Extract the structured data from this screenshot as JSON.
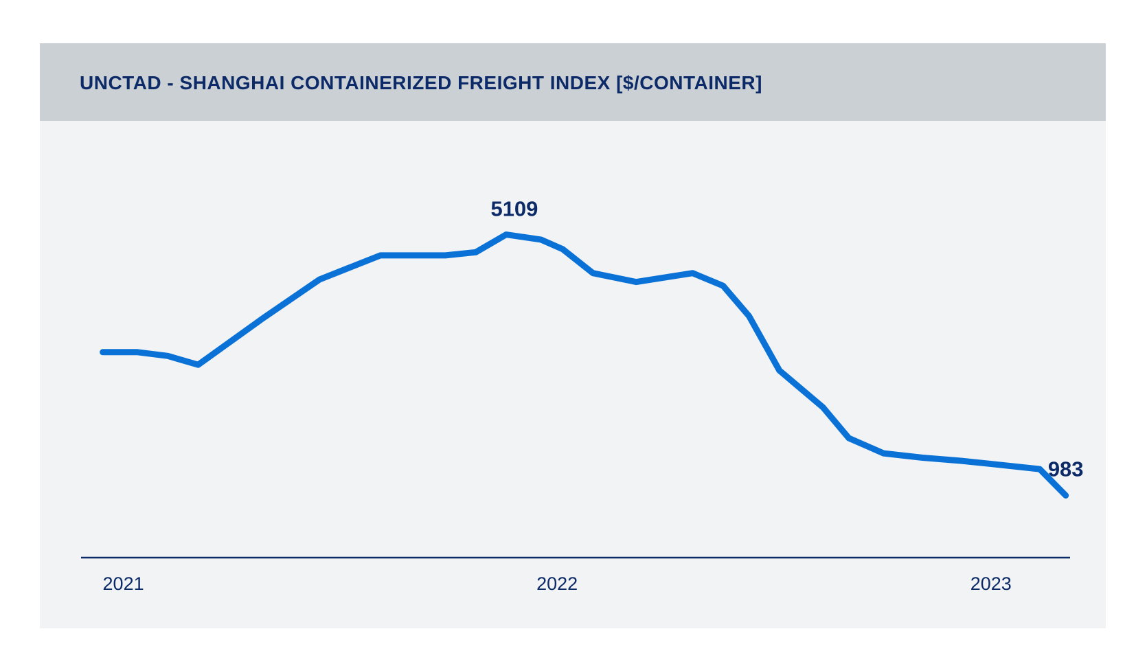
{
  "chart_data": {
    "type": "line",
    "title": "UNCTAD - SHANGHAI CONTAINERIZED FREIGHT INDEX [$/CONTAINER]",
    "title_parts": {
      "source": "UNCTAD",
      "rest": " - SHANGHAI CONTAINERIZED FREIGHT INDEX [$/CONTAINER]"
    },
    "xlabel": "",
    "ylabel": "",
    "grid": false,
    "legend": "none",
    "colors": {
      "line": "#0a72d6",
      "text": "#0c2a67",
      "axis": "#0c2a67",
      "header_bg": "#cbd0d5",
      "plot_bg": "#f2f3f5"
    },
    "x_ticks": [
      {
        "label": "2021",
        "t": 2021.0
      },
      {
        "label": "2022",
        "t": 2022.0
      },
      {
        "label": "2023",
        "t": 2023.0
      }
    ],
    "xlim": [
      2020.95,
      2023.23
    ],
    "ylim": [
      0,
      6300
    ],
    "series": [
      {
        "x": [
          2021.0,
          2021.08,
          2021.15,
          2021.22,
          2021.37,
          2021.5,
          2021.64,
          2021.79,
          2021.86,
          2021.93,
          2022.01,
          2022.06,
          2022.13,
          2022.23,
          2022.36,
          2022.43,
          2022.49,
          2022.56,
          2022.66,
          2022.72,
          2022.8,
          2022.89,
          2022.98,
          2023.05,
          2023.16,
          2023.22
        ],
        "y": [
          3250,
          3250,
          3190,
          3050,
          3790,
          4400,
          4780,
          4780,
          4830,
          5109,
          5030,
          4880,
          4500,
          4360,
          4500,
          4300,
          3820,
          2960,
          2380,
          1890,
          1650,
          1580,
          1530,
          1480,
          1400,
          983
        ]
      }
    ],
    "annotations": [
      {
        "text": "5109",
        "point_index": 9
      },
      {
        "text": "983",
        "point_index": 25
      }
    ]
  }
}
